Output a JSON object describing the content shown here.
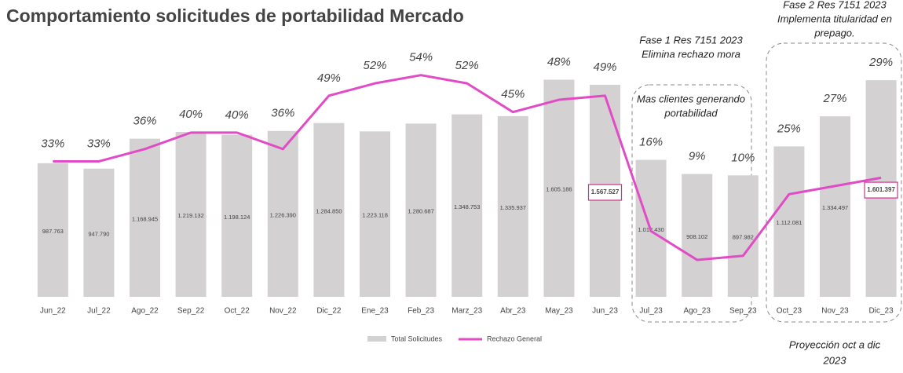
{
  "chart_data": {
    "type": "bar",
    "title": "Comportamiento solicitudes de portabilidad Mercado",
    "categories": [
      "Jun_22",
      "Jul_22",
      "Ago_22",
      "Sep_22",
      "Oct_22",
      "Nov_22",
      "Dic_22",
      "Ene_23",
      "Feb_23",
      "Marz_23",
      "Abr_23",
      "May_23",
      "Jun_23",
      "Jul_23",
      "Ago_23",
      "Sep_23",
      "Oct_23",
      "Nov_23",
      "Dic_23"
    ],
    "series": [
      {
        "name": "Total Solicitudes",
        "type": "bar",
        "color": "#d3d1d1",
        "values": [
          987763,
          947790,
          1168945,
          1219132,
          1198124,
          1226390,
          1284850,
          1223118,
          1280687,
          1348753,
          1335937,
          1605186,
          1567527,
          1012430,
          908102,
          897982,
          1112081,
          1334497,
          1601397
        ],
        "value_labels": [
          "987.763",
          "947.790",
          "1.168.945",
          "1.219.132",
          "1.198.124",
          "1.226.390",
          "1.284.850",
          "1.223.118",
          "1.280.687",
          "1.348.753",
          "1.335.937",
          "1.605.186",
          "1.567.527",
          "1.012.430",
          "908.102",
          "897.982",
          "1.112.081",
          "1.334.497",
          "1.601.397"
        ]
      },
      {
        "name": "Rechazo General",
        "type": "line",
        "axis": "y2",
        "color": "#e24bc6",
        "values": [
          33,
          33,
          36,
          40,
          40,
          36,
          49,
          52,
          54,
          52,
          45,
          48,
          49,
          16,
          9,
          10,
          25,
          27,
          29
        ],
        "value_labels": [
          "33%",
          "33%",
          "36%",
          "40%",
          "40%",
          "36%",
          "49%",
          "52%",
          "54%",
          "52%",
          "45%",
          "48%",
          "49%",
          "16%",
          "9%",
          "10%",
          "25%",
          "27%",
          "29%"
        ]
      }
    ],
    "ylim": [
      0,
      1730000
    ],
    "y2lim": [
      0,
      57
    ],
    "legend": "bottom",
    "annotations": [
      "Fase 1 Res 7151 2023",
      "Elimina rechazo mora",
      "Mas clientes generando",
      "portabilidad",
      "Fase 2 Res 7151 2023",
      "Implementa titularidad en",
      "prepago.",
      "Proyección oct a dic",
      "2023"
    ]
  }
}
